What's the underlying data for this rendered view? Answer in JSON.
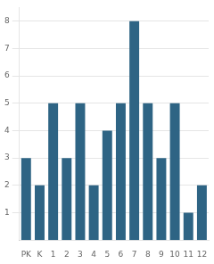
{
  "chart_data": {
    "type": "bar",
    "categories": [
      "PK",
      "K",
      "1",
      "2",
      "3",
      "4",
      "5",
      "6",
      "7",
      "8",
      "9",
      "10",
      "11",
      "12"
    ],
    "values": [
      3,
      2,
      5,
      3,
      5,
      2,
      4,
      5,
      8,
      5,
      3,
      5,
      1,
      2
    ],
    "color": "#2e6484",
    "ylim": [
      0,
      8.5
    ],
    "yticks": [
      1,
      2,
      3,
      4,
      5,
      6,
      7,
      8
    ],
    "grid": true
  }
}
